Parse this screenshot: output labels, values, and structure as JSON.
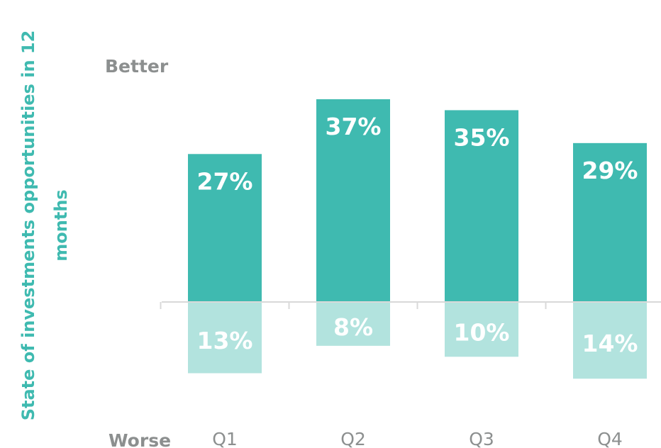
{
  "chart_data": {
    "type": "bar",
    "ylabel": "State of investments opportunities in 12 months",
    "ylabel_lines": [
      "State of investments opportunities in 12",
      "months"
    ],
    "better_label": "Better",
    "worse_label": "Worse",
    "categories": [
      "Q1",
      "Q2",
      "Q3",
      "Q4"
    ],
    "series": [
      {
        "name": "Better",
        "values": [
          27,
          37,
          35,
          29
        ],
        "labels": [
          "27%",
          "37%",
          "35%",
          "29%"
        ],
        "color": "#3fbab0"
      },
      {
        "name": "Worse",
        "values": [
          13,
          8,
          10,
          14
        ],
        "labels": [
          "13%",
          "8%",
          "10%",
          "14%"
        ],
        "color": "#b2e3de"
      }
    ],
    "axis_color": "#d9d9d9",
    "grid": false,
    "legend": "none"
  }
}
